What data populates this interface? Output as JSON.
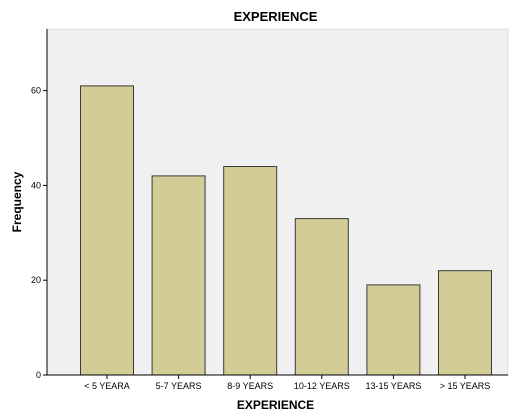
{
  "chart_data": {
    "type": "bar",
    "title": "EXPERIENCE",
    "xlabel": "EXPERIENCE",
    "ylabel": "Frequency",
    "categories": [
      "< 5 YEARA",
      "5-7 YEARS",
      "8-9 YEARS",
      "10-12 YEARS",
      "13-15 YEARS",
      "> 15 YEARS"
    ],
    "values": [
      61,
      42,
      44,
      33,
      19,
      22
    ],
    "ylim": [
      0,
      73
    ],
    "yticks": [
      0,
      20,
      40,
      60
    ],
    "grid": false,
    "legend": "none",
    "colors": {
      "bar_fill": "#d4cc96",
      "bar_stroke": "#3a3a3a",
      "plot_background": "#f0f0f0",
      "axis": "#000000"
    }
  }
}
